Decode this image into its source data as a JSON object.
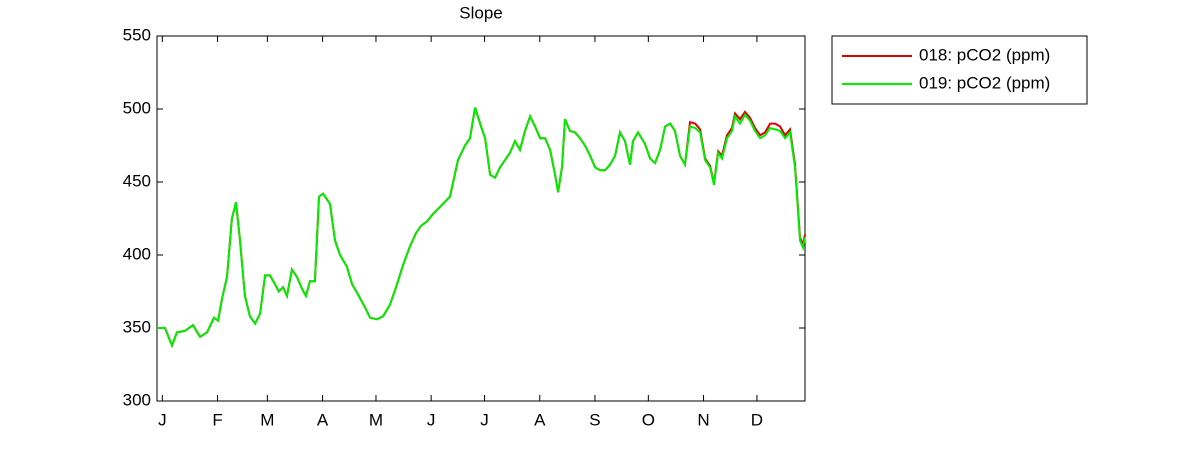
{
  "chart_data": {
    "type": "line",
    "title": "Slope",
    "x": [
      -2,
      2.5,
      6.4,
      9.2,
      13.7,
      18.2,
      22.2,
      26.1,
      30.0,
      32.3,
      34.5,
      37.3,
      40.1,
      42.4,
      44.6,
      47.4,
      50.2,
      53.1,
      55.9,
      58.7,
      61.5,
      64.3,
      66.5,
      68.8,
      71.0,
      73.8,
      76.6,
      79.4,
      81.7,
      83.9,
      86.7,
      89.0,
      91.3,
      95.2,
      98.0,
      100.8,
      104.7,
      107.6,
      110.9,
      114.9,
      117.7,
      121.6,
      125.0,
      128.9,
      132.3,
      136.2,
      140.1,
      143.5,
      146.3,
      149.7,
      153.0,
      157.0,
      162.6,
      167.1,
      171.0,
      173.8,
      176.7,
      179.5,
      182.3,
      185.1,
      187.9,
      190.7,
      193.5,
      196.3,
      199.1,
      201.9,
      204.7,
      207.6,
      210.4,
      213.2,
      216.0,
      218.8,
      221.6,
      223.3,
      225.5,
      227.2,
      230.0,
      232.8,
      235.6,
      238.4,
      241.3,
      244.1,
      246.9,
      249.7,
      252.5,
      255.3,
      258.1,
      260.9,
      263.7,
      265.4,
      268.2,
      272.2,
      275.0,
      277.8,
      280.6,
      283.4,
      286.2,
      289.0,
      291.8,
      294.6,
      297.4,
      300.3,
      303.1,
      305.9,
      308.7,
      310.9,
      313.2,
      315.4,
      318.2,
      321.0,
      322.7,
      325.5,
      328.3,
      331.1,
      333.9,
      336.8,
      339.6,
      342.4,
      345.2,
      348.0,
      350.8,
      353.6,
      356.4,
      359.2,
      360.9,
      362
    ],
    "series": [
      {
        "name": "018: pCO2 (ppm)",
        "color": "#e00000",
        "values": [
          350,
          350,
          338,
          347,
          348,
          352,
          344,
          347,
          357,
          355,
          370,
          385,
          425,
          436,
          410,
          372,
          358,
          353,
          360,
          386,
          386,
          380,
          375,
          378,
          372,
          390,
          385,
          377,
          372,
          382,
          382,
          440,
          442,
          435,
          410,
          400,
          392,
          380,
          373,
          364,
          357,
          356,
          358,
          366,
          378,
          393,
          406,
          415,
          420,
          423,
          428,
          433,
          440,
          465,
          475,
          480,
          501,
          490,
          480,
          455,
          453,
          460,
          465,
          470,
          478,
          472,
          485,
          495,
          488,
          480,
          480,
          472,
          455,
          443,
          460,
          493,
          485,
          484,
          480,
          475,
          468,
          460,
          458,
          458,
          462,
          468,
          484,
          478,
          462,
          478,
          484,
          476,
          466,
          463,
          472,
          488,
          490,
          485,
          468,
          462,
          491,
          490,
          486,
          466,
          461,
          449,
          471,
          468,
          482,
          487,
          497,
          493,
          498,
          494,
          487,
          482,
          484,
          490,
          490,
          488,
          482,
          486,
          462,
          412,
          407,
          414
        ]
      },
      {
        "name": "019: pCO2 (ppm)",
        "color": "#00ee00",
        "values": [
          350,
          350,
          338,
          347,
          348,
          352,
          344,
          347,
          357,
          355,
          370,
          385,
          425,
          436,
          410,
          372,
          358,
          353,
          360,
          386,
          386,
          380,
          375,
          378,
          372,
          390,
          385,
          377,
          372,
          382,
          382,
          440,
          442,
          435,
          410,
          400,
          392,
          380,
          373,
          364,
          357,
          356,
          358,
          366,
          378,
          393,
          406,
          415,
          420,
          423,
          428,
          433,
          440,
          465,
          475,
          480,
          501,
          490,
          480,
          455,
          453,
          460,
          465,
          470,
          478,
          472,
          485,
          495,
          488,
          480,
          480,
          472,
          455,
          443,
          460,
          493,
          485,
          484,
          480,
          475,
          468,
          460,
          458,
          458,
          462,
          468,
          484,
          478,
          462,
          478,
          484,
          476,
          466,
          463,
          472,
          488,
          490,
          485,
          468,
          462,
          488,
          487,
          484,
          465,
          460,
          448,
          470,
          466,
          480,
          485,
          495,
          490,
          496,
          492,
          485,
          480,
          482,
          487,
          486,
          485,
          480,
          484,
          460,
          410,
          405,
          412
        ]
      }
    ],
    "xlim": [
      -2,
      362
    ],
    "xticks": [
      {
        "value": 1,
        "label": "J"
      },
      {
        "value": 32,
        "label": "F"
      },
      {
        "value": 60,
        "label": "M"
      },
      {
        "value": 91,
        "label": "A"
      },
      {
        "value": 121,
        "label": "M"
      },
      {
        "value": 152,
        "label": "J"
      },
      {
        "value": 182,
        "label": "J"
      },
      {
        "value": 213,
        "label": "A"
      },
      {
        "value": 244,
        "label": "S"
      },
      {
        "value": 274,
        "label": "O"
      },
      {
        "value": 305,
        "label": "N"
      },
      {
        "value": 335,
        "label": "D"
      }
    ],
    "ylim": [
      300,
      550
    ],
    "yticks": [
      300,
      350,
      400,
      450,
      500,
      550
    ],
    "grid": false,
    "legend": "outside-right"
  }
}
